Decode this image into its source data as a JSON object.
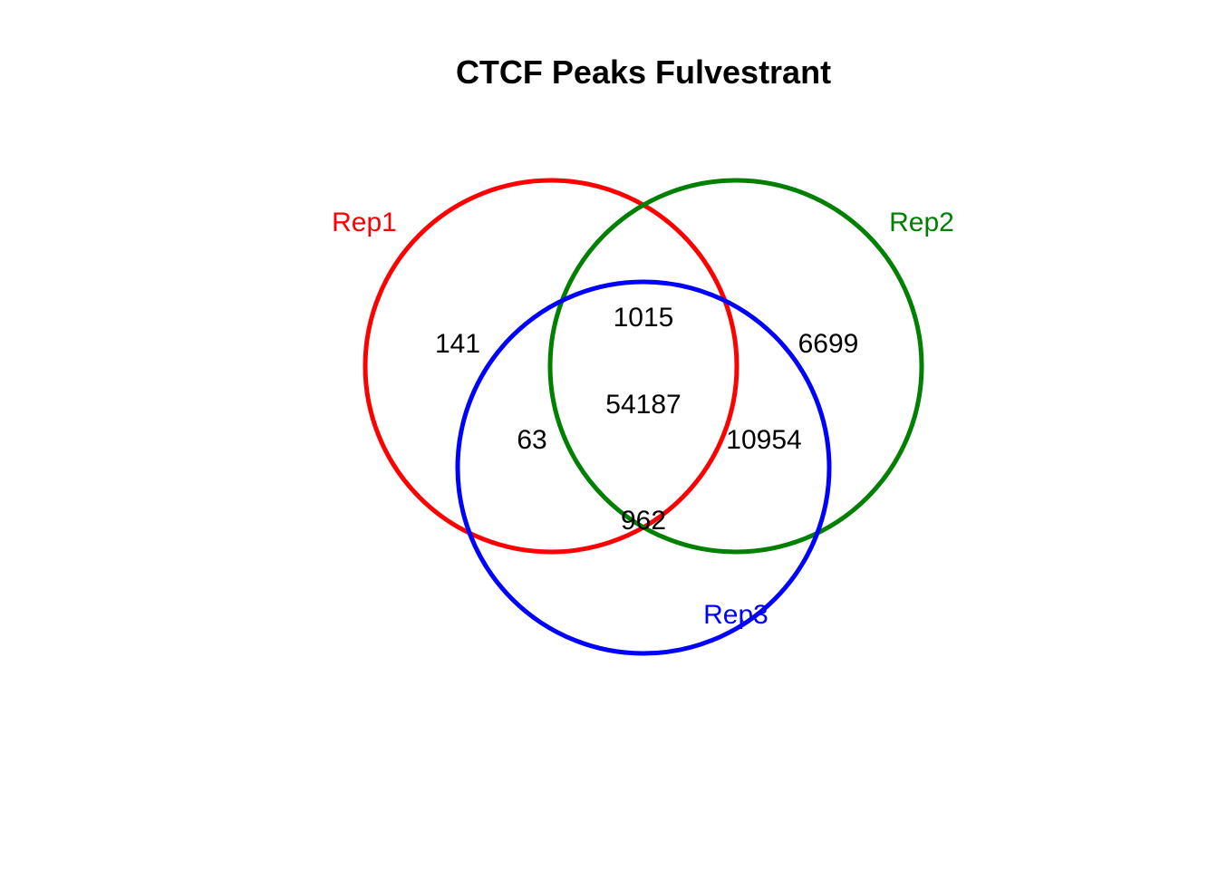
{
  "title": "CTCF Peaks Fulvestrant",
  "sets": [
    {
      "key": "rep1",
      "label": "Rep1",
      "color": "#ff0000"
    },
    {
      "key": "rep2",
      "label": "Rep2",
      "color": "#008000"
    },
    {
      "key": "rep3",
      "label": "Rep3",
      "color": "#0000ff"
    }
  ],
  "regions": {
    "rep1_only": "141",
    "rep2_only": "6699",
    "rep1_rep2_only": "1015",
    "rep1_rep3_only": "63",
    "rep2_rep3_only": "10954",
    "all_three": "54187",
    "rep3_only": "962"
  }
}
